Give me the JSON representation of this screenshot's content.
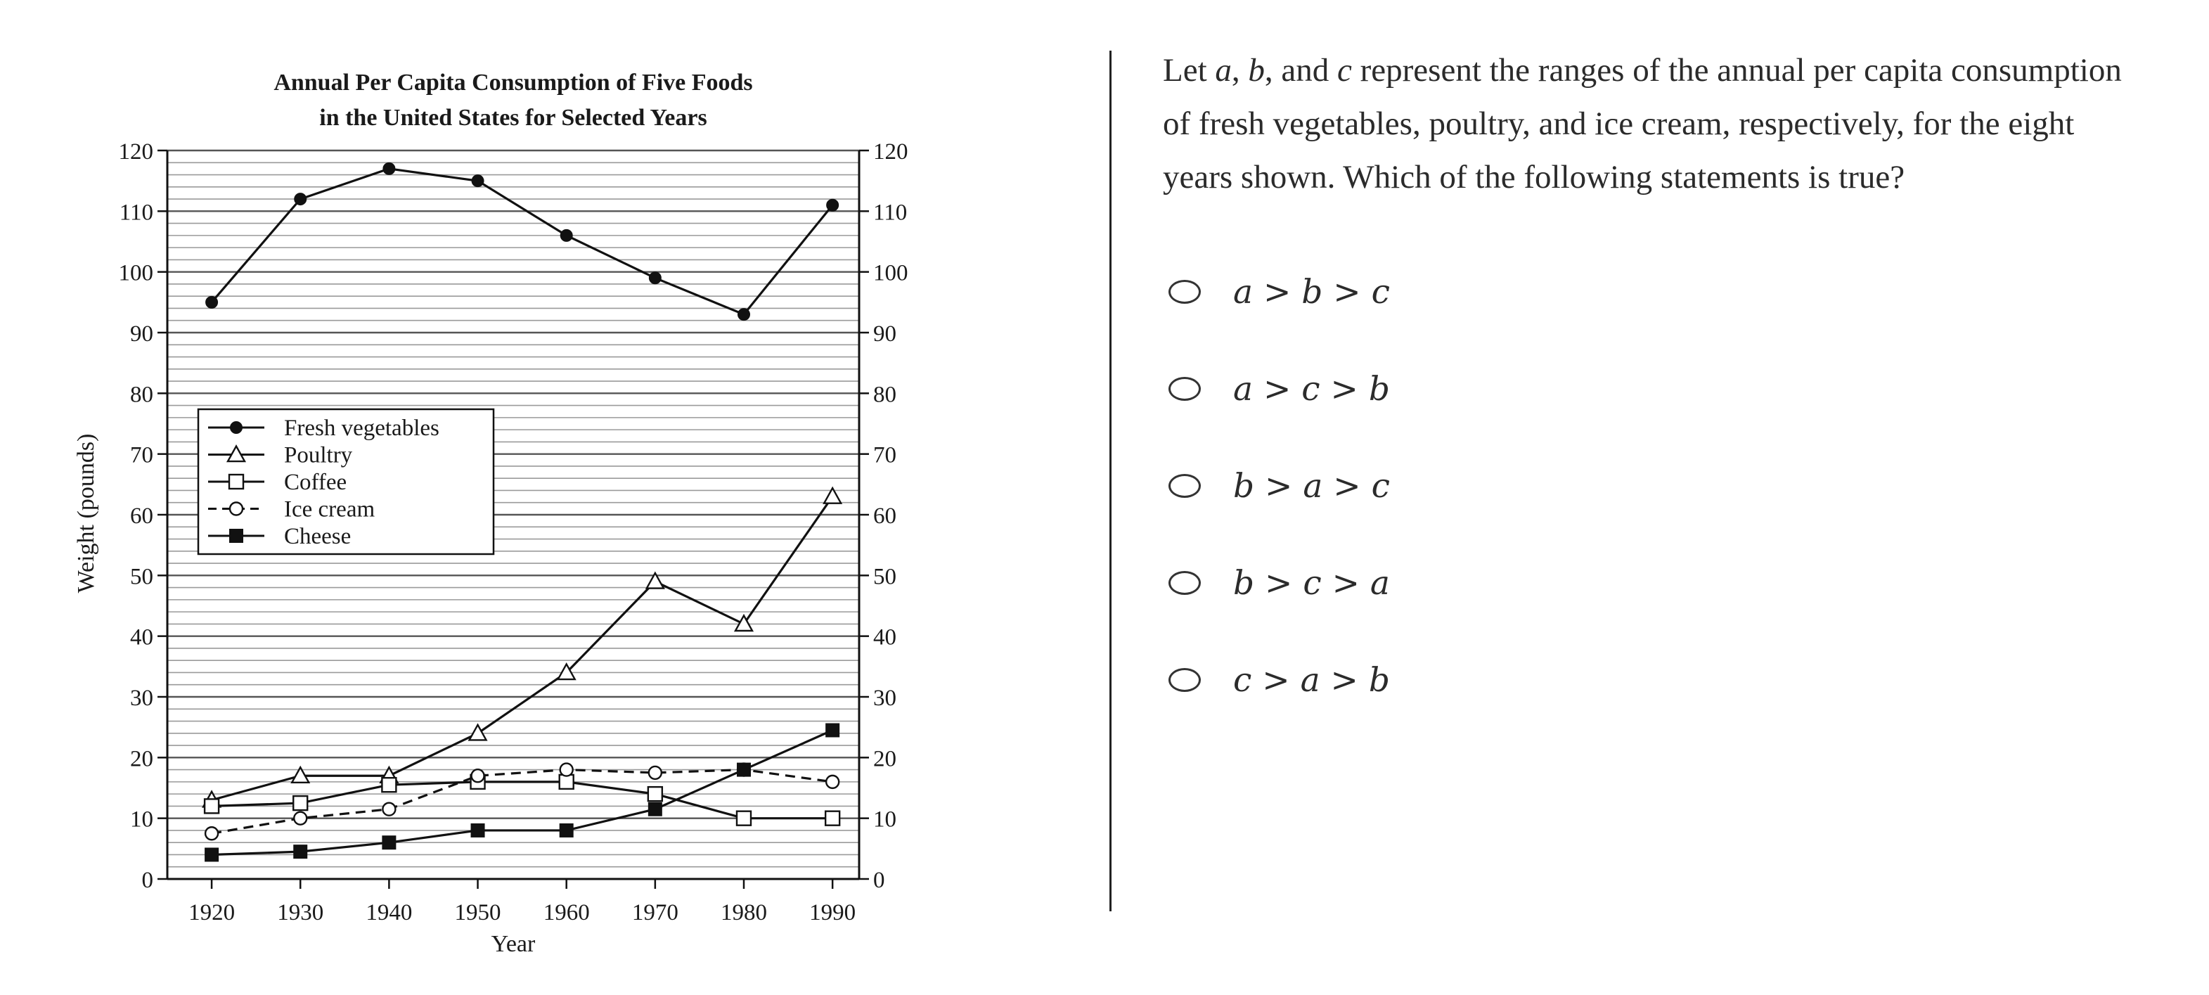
{
  "question": {
    "v1": "a",
    "sep1": ", ",
    "v2": "b",
    "sep2": ", and ",
    "v3": "c",
    "text": " represent the ranges of the annual per capita consumption of fresh vegetables, poultry, and ice cream, respectively, for the eight years shown. Which of the following statements is true?",
    "lead": "Let "
  },
  "options": [
    {
      "label": "a > b > c"
    },
    {
      "label": "a > c > b"
    },
    {
      "label": "b > a > c"
    },
    {
      "label": "b > c > a"
    },
    {
      "label": "c > a > b"
    }
  ],
  "chart_data": {
    "type": "line",
    "title": "Annual Per Capita Consumption of Five Foods",
    "subtitle": "in the United States for Selected Years",
    "xlabel": "Year",
    "ylabel": "Weight (pounds)",
    "x": [
      1920,
      1930,
      1940,
      1950,
      1960,
      1970,
      1980,
      1990
    ],
    "ylim": [
      0,
      120
    ],
    "y_ticks": [
      0,
      10,
      20,
      30,
      40,
      50,
      60,
      70,
      80,
      90,
      100,
      110,
      120
    ],
    "x_tick_labels": [
      "1920",
      "1930",
      "1940",
      "1950",
      "1960",
      "1970",
      "1980",
      "1990"
    ],
    "y_tick_labels": [
      "0",
      "10",
      "20",
      "30",
      "40",
      "50",
      "60",
      "70",
      "80",
      "90",
      "100",
      "110",
      "120"
    ],
    "minor_grid_step": 2,
    "major_grid_step": 10,
    "grid": true,
    "right_axis_mirrors_left": true,
    "legend_position": "middle-left",
    "series": [
      {
        "name": "Fresh vegetables",
        "marker": "filled-circle",
        "line": "solid",
        "values": [
          95,
          112,
          117,
          115,
          106,
          99,
          93,
          111
        ]
      },
      {
        "name": "Poultry",
        "marker": "open-triangle",
        "line": "solid",
        "values": [
          13,
          17,
          17,
          24,
          34,
          49,
          42,
          63
        ]
      },
      {
        "name": "Coffee",
        "marker": "open-square",
        "line": "solid",
        "values": [
          12,
          12.5,
          15.5,
          16,
          16,
          14,
          10,
          10
        ]
      },
      {
        "name": "Ice cream",
        "marker": "open-circle",
        "line": "dashed",
        "values": [
          7.5,
          10,
          11.5,
          17,
          18,
          17.5,
          18,
          16
        ]
      },
      {
        "name": "Cheese",
        "marker": "filled-square",
        "line": "solid",
        "values": [
          4,
          4.5,
          6,
          8,
          8,
          11.5,
          18,
          24.5
        ]
      }
    ]
  }
}
